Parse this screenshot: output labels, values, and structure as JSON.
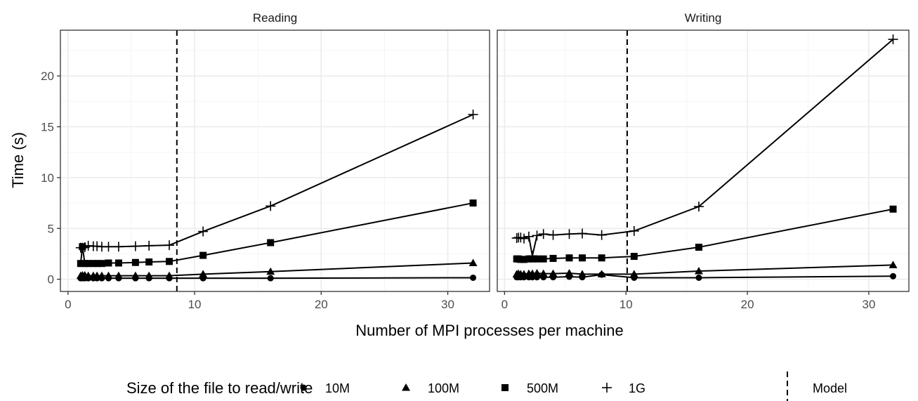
{
  "chart_data": {
    "type": "line",
    "ylabel": "Time (s)",
    "xlabel": "Number of MPI processes per machine",
    "legend_title": "Size of the file to read/write",
    "legend_model_label": "Model",
    "legend_placement": "bottom",
    "xlim": [
      -0.6,
      33.3
    ],
    "ylim": [
      -1.2,
      24.5
    ],
    "xticks": [
      0,
      10,
      20,
      30
    ],
    "yticks": [
      0,
      5,
      10,
      15,
      20
    ],
    "grid": true,
    "colors": {
      "line": "#000000",
      "grid_major": "#ebebeb",
      "grid_minor": "#f5f5f5",
      "strip_bg": "#ffffff",
      "panel_border": "#333333"
    },
    "series_meta": [
      {
        "name": "10M",
        "shape": "circle"
      },
      {
        "name": "100M",
        "shape": "triangle"
      },
      {
        "name": "500M",
        "shape": "square"
      },
      {
        "name": "1G",
        "shape": "plus"
      }
    ],
    "panels": [
      {
        "title": "Reading",
        "model_x": 8.6,
        "series": [
          {
            "name": "10M",
            "x": [
              1.0,
              1.14,
              1.33,
              1.6,
              2.0,
              2.29,
              2.67,
              3.2,
              4.0,
              5.33,
              6.4,
              8.0,
              10.67,
              16.0,
              32.0
            ],
            "y": [
              0.1,
              0.1,
              0.1,
              0.1,
              0.1,
              0.1,
              0.1,
              0.1,
              0.1,
              0.1,
              0.1,
              0.1,
              0.1,
              0.1,
              0.15
            ]
          },
          {
            "name": "100M",
            "x": [
              1.0,
              1.14,
              1.33,
              1.6,
              2.0,
              2.29,
              2.67,
              3.2,
              4.0,
              5.33,
              6.4,
              8.0,
              10.67,
              16.0,
              32.0
            ],
            "y": [
              0.35,
              0.4,
              0.4,
              0.35,
              0.35,
              0.35,
              0.35,
              0.35,
              0.35,
              0.35,
              0.35,
              0.35,
              0.5,
              0.75,
              1.6
            ]
          },
          {
            "name": "500M",
            "x": [
              1.0,
              1.14,
              1.33,
              1.6,
              2.0,
              2.29,
              2.67,
              3.2,
              4.0,
              5.33,
              6.4,
              8.0,
              10.67,
              16.0,
              32.0
            ],
            "y": [
              1.55,
              3.2,
              1.55,
              1.55,
              1.55,
              1.55,
              1.55,
              1.6,
              1.6,
              1.65,
              1.7,
              1.75,
              2.35,
              3.6,
              7.5
            ]
          },
          {
            "name": "1G",
            "x": [
              1.0,
              1.14,
              1.33,
              1.6,
              2.0,
              2.29,
              2.67,
              3.2,
              4.0,
              5.33,
              6.4,
              8.0,
              10.67,
              16.0,
              32.0
            ],
            "y": [
              3.1,
              3.1,
              3.15,
              3.3,
              3.25,
              3.25,
              3.2,
              3.2,
              3.2,
              3.25,
              3.3,
              3.35,
              4.7,
              7.2,
              16.2
            ]
          }
        ]
      },
      {
        "title": "Writing",
        "model_x": 10.1,
        "series": [
          {
            "name": "10M",
            "x": [
              1.0,
              1.14,
              1.33,
              1.6,
              2.0,
              2.29,
              2.67,
              3.2,
              4.0,
              5.33,
              6.4,
              8.0,
              10.67,
              16.0,
              32.0
            ],
            "y": [
              0.2,
              0.2,
              0.2,
              0.2,
              0.2,
              0.2,
              0.2,
              0.2,
              0.2,
              0.25,
              0.2,
              0.45,
              0.15,
              0.15,
              0.3
            ]
          },
          {
            "name": "100M",
            "x": [
              1.0,
              1.14,
              1.33,
              1.6,
              2.0,
              2.29,
              2.67,
              3.2,
              4.0,
              5.33,
              6.4,
              8.0,
              10.67,
              16.0,
              32.0
            ],
            "y": [
              0.5,
              0.55,
              0.5,
              0.5,
              0.55,
              0.55,
              0.6,
              0.55,
              0.55,
              0.6,
              0.5,
              0.5,
              0.5,
              0.8,
              1.4
            ]
          },
          {
            "name": "500M",
            "x": [
              1.0,
              1.14,
              1.33,
              1.6,
              2.0,
              2.29,
              2.67,
              3.2,
              4.0,
              5.33,
              6.4,
              8.0,
              10.67,
              16.0,
              32.0
            ],
            "y": [
              2.0,
              2.0,
              1.95,
              1.95,
              2.0,
              2.0,
              2.0,
              2.0,
              2.05,
              2.1,
              2.1,
              2.1,
              2.25,
              3.15,
              6.9
            ]
          },
          {
            "name": "1G",
            "x": [
              1.0,
              1.14,
              1.33,
              1.6,
              2.0,
              2.29,
              2.67,
              3.2,
              4.0,
              5.33,
              6.4,
              8.0,
              10.67,
              16.0,
              32.0
            ],
            "y": [
              4.05,
              4.1,
              4.1,
              4.0,
              4.2,
              2.3,
              4.3,
              4.45,
              4.35,
              4.45,
              4.5,
              4.35,
              4.75,
              7.15,
              23.6
            ]
          }
        ]
      }
    ]
  }
}
